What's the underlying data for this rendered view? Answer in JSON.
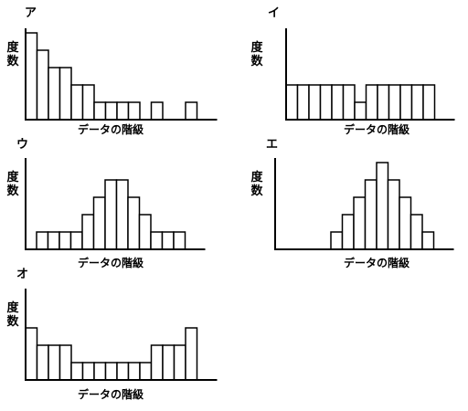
{
  "chart_data": [
    {
      "type": "bar",
      "panel_label": "ア",
      "ylabel": "度数",
      "xlabel": "データの階級",
      "values": [
        10,
        8,
        6,
        6,
        4,
        4,
        2,
        2,
        2,
        2,
        0,
        2,
        0,
        0,
        2
      ],
      "ylim": [
        0,
        10
      ],
      "grid": false
    },
    {
      "type": "bar",
      "panel_label": "イ",
      "ylabel": "度数",
      "xlabel": "データの階級",
      "values": [
        4,
        4,
        4,
        4,
        4,
        4,
        2,
        4,
        4,
        4,
        4,
        4,
        4
      ],
      "ylim": [
        0,
        10
      ],
      "grid": false
    },
    {
      "type": "bar",
      "panel_label": "ウ",
      "ylabel": "度数",
      "xlabel": "データの階級",
      "values": [
        2,
        2,
        2,
        2,
        4,
        6,
        8,
        8,
        6,
        4,
        2,
        2,
        2
      ],
      "ylim": [
        0,
        10
      ],
      "grid": false
    },
    {
      "type": "bar",
      "panel_label": "エ",
      "ylabel": "度数",
      "xlabel": "データの階級",
      "values": [
        2,
        4,
        6,
        8,
        10,
        8,
        6,
        4,
        2
      ],
      "ylim": [
        0,
        10
      ],
      "grid": false
    },
    {
      "type": "bar",
      "panel_label": "オ",
      "ylabel": "度数",
      "xlabel": "データの階級",
      "values": [
        6,
        4,
        4,
        4,
        2,
        2,
        2,
        2,
        2,
        2,
        2,
        4,
        4,
        4,
        6
      ],
      "ylim": [
        0,
        10
      ],
      "grid": false
    }
  ]
}
